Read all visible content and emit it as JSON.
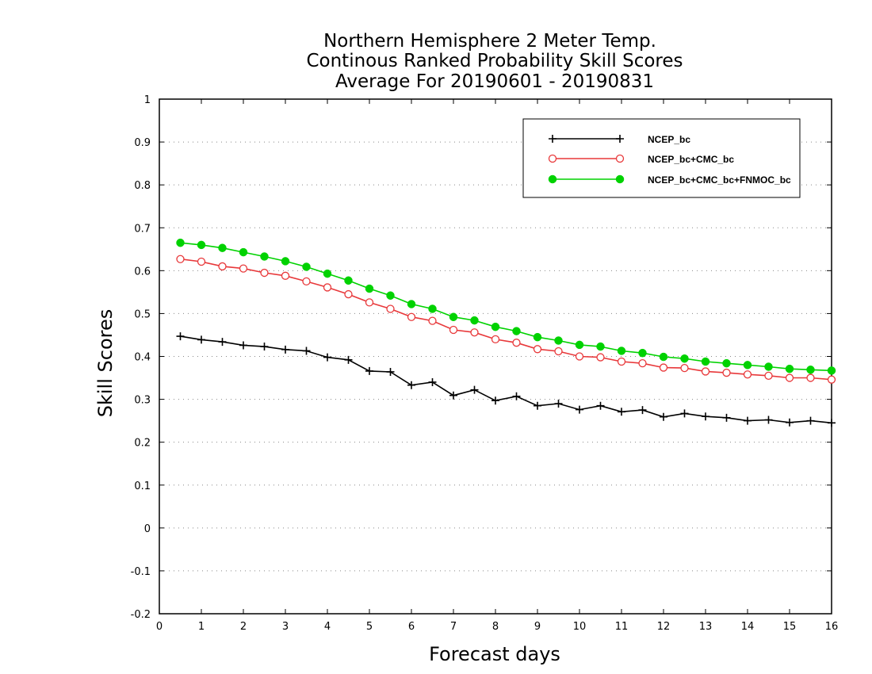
{
  "chart_data": {
    "type": "line",
    "title_lines": [
      "Northern Hemisphere 2 Meter Temp.",
      "Continous Ranked Probability Skill Scores",
      "Average For 20190601 - 20190831"
    ],
    "xlabel": "Forecast days",
    "ylabel": "Skill Scores",
    "xlim": [
      0,
      16
    ],
    "ylim": [
      -0.2,
      1
    ],
    "x_ticks": [
      0,
      1,
      2,
      3,
      4,
      5,
      6,
      7,
      8,
      9,
      10,
      11,
      12,
      13,
      14,
      15,
      16
    ],
    "x_tick_labels": [
      "0",
      "1",
      "2",
      "3",
      "4",
      "5",
      "6",
      "7",
      "8",
      "9",
      "10",
      "11",
      "12",
      "13",
      "14",
      "15",
      "16"
    ],
    "y_ticks": [
      -0.2,
      -0.1,
      0,
      0.1,
      0.2,
      0.3,
      0.4,
      0.5,
      0.6,
      0.7,
      0.8,
      0.9,
      1
    ],
    "y_tick_labels": [
      "-0.2",
      "-0.1",
      "0",
      "0.1",
      "0.2",
      "0.3",
      "0.4",
      "0.5",
      "0.6",
      "0.7",
      "0.8",
      "0.9",
      "1"
    ],
    "grid": "horizontal dotted",
    "legend_position": "top-right",
    "x": [
      0.5,
      1,
      1.5,
      2,
      2.5,
      3,
      3.5,
      4,
      4.5,
      5,
      5.5,
      6,
      6.5,
      7,
      7.5,
      8,
      8.5,
      9,
      9.5,
      10,
      10.5,
      11,
      11.5,
      12,
      12.5,
      13,
      13.5,
      14,
      14.5,
      15,
      15.5,
      16
    ],
    "series": [
      {
        "name": "NCEP_bc",
        "color": "#000000",
        "marker": "plus",
        "values": [
          0.447,
          0.439,
          0.434,
          0.426,
          0.423,
          0.416,
          0.413,
          0.398,
          0.392,
          0.366,
          0.364,
          0.333,
          0.34,
          0.309,
          0.322,
          0.297,
          0.307,
          0.285,
          0.29,
          0.276,
          0.285,
          0.271,
          0.275,
          0.259,
          0.267,
          0.26,
          0.257,
          0.25,
          0.252,
          0.246,
          0.25,
          0.245
        ]
      },
      {
        "name": "NCEP_bc+CMC_bc",
        "color": "#e8383a",
        "marker": "open-circle",
        "values": [
          0.627,
          0.621,
          0.61,
          0.605,
          0.595,
          0.588,
          0.575,
          0.561,
          0.545,
          0.526,
          0.511,
          0.492,
          0.483,
          0.462,
          0.456,
          0.44,
          0.432,
          0.417,
          0.412,
          0.4,
          0.398,
          0.388,
          0.384,
          0.374,
          0.373,
          0.365,
          0.362,
          0.358,
          0.355,
          0.35,
          0.35,
          0.346
        ]
      },
      {
        "name": "NCEP_bc+CMC_bc+FNMOC_bc",
        "color": "#00d200",
        "marker": "filled-circle",
        "values": [
          0.665,
          0.66,
          0.653,
          0.643,
          0.633,
          0.622,
          0.609,
          0.593,
          0.577,
          0.558,
          0.542,
          0.522,
          0.511,
          0.492,
          0.484,
          0.469,
          0.459,
          0.445,
          0.437,
          0.427,
          0.423,
          0.413,
          0.408,
          0.399,
          0.395,
          0.388,
          0.384,
          0.38,
          0.376,
          0.371,
          0.369,
          0.367
        ]
      }
    ]
  }
}
